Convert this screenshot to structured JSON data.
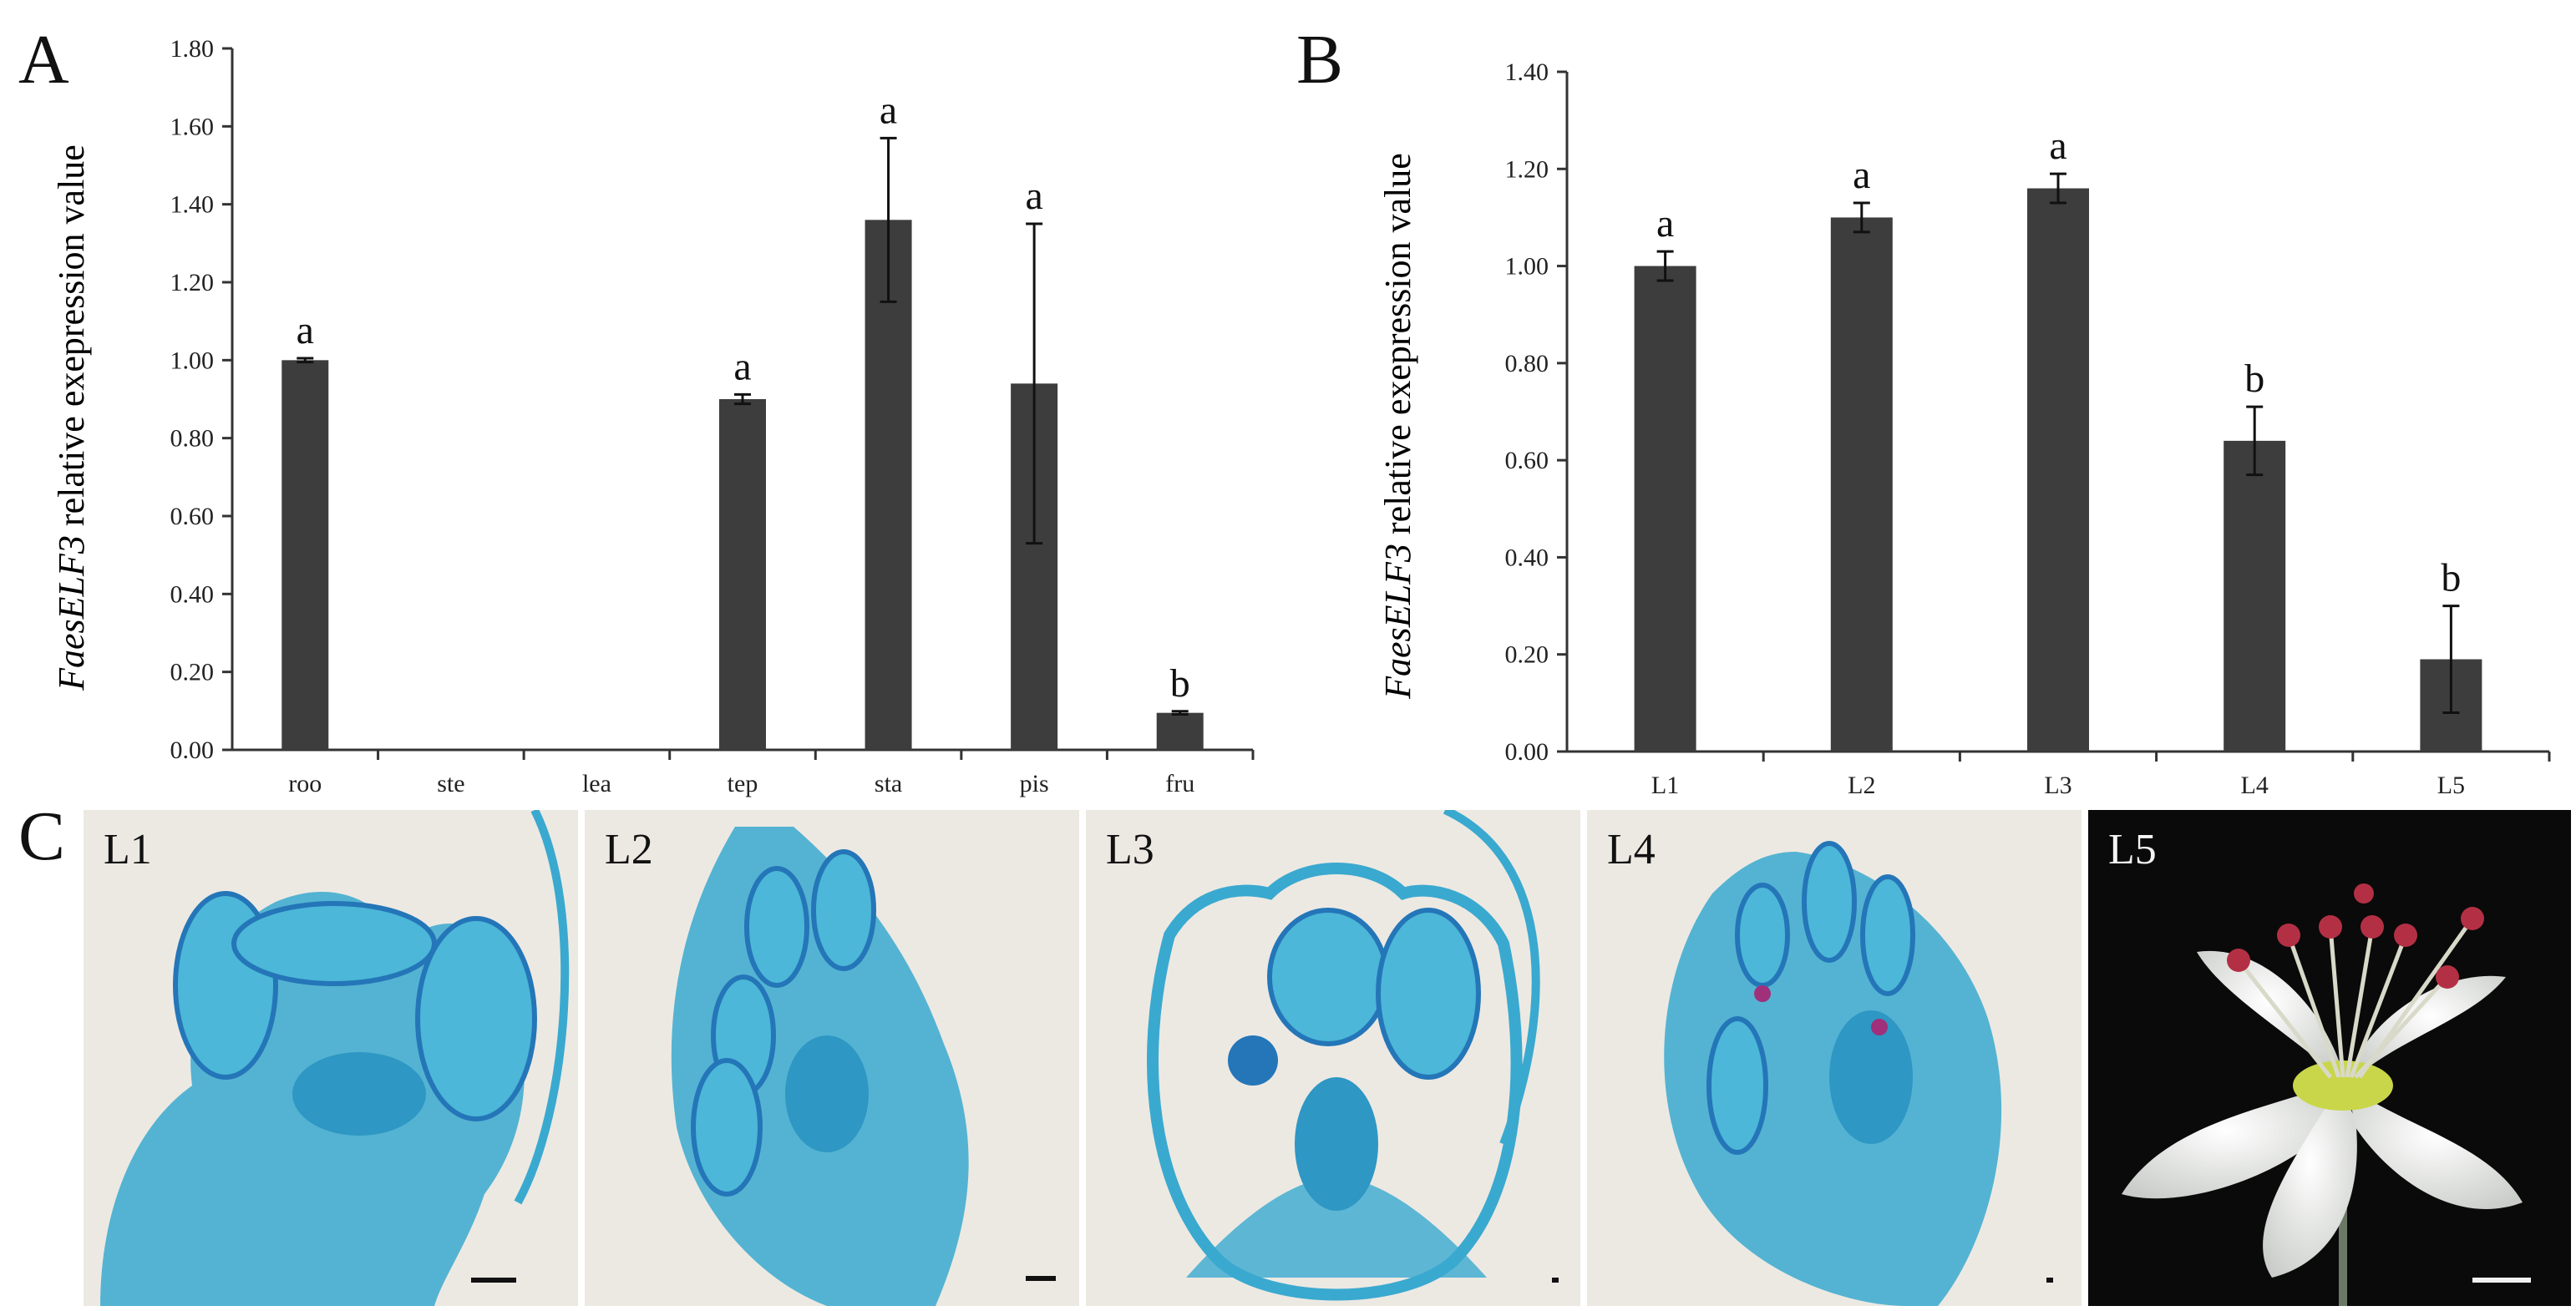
{
  "panels": {
    "a": "A",
    "b": "B",
    "c": "C"
  },
  "chart_data": [
    {
      "type": "bar",
      "ylabel_italic": "FaesELF3",
      "ylabel_rest": " relative exepression value",
      "categories": [
        "roo",
        "ste",
        "lea",
        "tep",
        "sta",
        "pis",
        "fru"
      ],
      "values": [
        1.0,
        0.0,
        0.0,
        0.9,
        1.36,
        0.94,
        0.095
      ],
      "errors": [
        0.005,
        0,
        0,
        0.012,
        0.21,
        0.41,
        0.004
      ],
      "letters": [
        "a",
        "",
        "",
        "a",
        "a",
        "a",
        "b"
      ],
      "ylim": [
        0,
        1.8
      ],
      "yticks": [
        "0.00",
        "0.20",
        "0.40",
        "0.60",
        "0.80",
        "1.00",
        "1.20",
        "1.40",
        "1.60",
        "1.80"
      ],
      "bar_color": "#3d3d3d",
      "grid": false
    },
    {
      "type": "bar",
      "ylabel_italic": "FaesELF3",
      "ylabel_rest": " relative exepression value",
      "categories": [
        "L1",
        "L2",
        "L3",
        "L4",
        "L5"
      ],
      "values": [
        1.0,
        1.1,
        1.16,
        0.64,
        0.19
      ],
      "errors": [
        0.03,
        0.03,
        0.03,
        0.07,
        0.11
      ],
      "letters": [
        "a",
        "a",
        "a",
        "b",
        "b"
      ],
      "ylim": [
        0,
        1.4
      ],
      "yticks": [
        "0.00",
        "0.20",
        "0.40",
        "0.60",
        "0.80",
        "1.00",
        "1.20",
        "1.40"
      ],
      "bar_color": "#3d3d3d",
      "grid": false
    }
  ],
  "micrographs": {
    "labels": [
      "L1",
      "L2",
      "L3",
      "L4",
      "L5"
    ],
    "section_background": "#ece9e3",
    "tissue_color": "#3aa9cf",
    "dark_tissue_color": "#2476b8",
    "photo_background": "#0a0a0a",
    "petal_color": "#eef0ee",
    "anther_color": "#b33044"
  }
}
